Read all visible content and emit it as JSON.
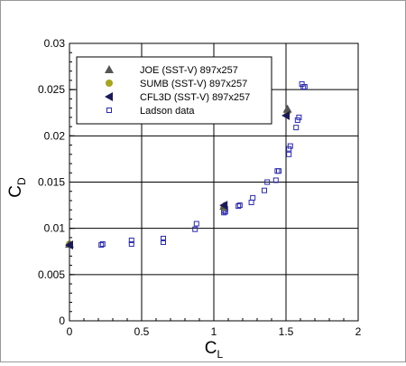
{
  "chart_data": {
    "type": "scatter",
    "xlabel_main": "C",
    "xlabel_sub": "L",
    "ylabel_main": "C",
    "ylabel_sub": "D",
    "xlim": [
      0,
      2
    ],
    "ylim": [
      0,
      0.03
    ],
    "x_ticks": [
      0,
      0.5,
      1,
      1.5,
      2
    ],
    "x_tick_labels": [
      "0",
      "0.5",
      "1",
      "1.5",
      "2"
    ],
    "y_ticks": [
      0,
      0.005,
      0.01,
      0.015,
      0.02,
      0.025,
      0.03
    ],
    "y_tick_labels": [
      "0",
      "0.005",
      "0.01",
      "0.015",
      "0.02",
      "0.025",
      "0.03"
    ],
    "grid": true,
    "legend_position": "top-left",
    "series": [
      {
        "name": "JOE (SST-V) 897x257",
        "marker": "triangle-up",
        "color": "#555555",
        "x": [
          0.0,
          1.07,
          1.51
        ],
        "y": [
          0.0083,
          0.0124,
          0.0229
        ]
      },
      {
        "name": "SUMB (SST-V) 897x257",
        "marker": "circle",
        "color": "#a5a51e",
        "x": [
          0.0,
          1.07,
          1.51
        ],
        "y": [
          0.0083,
          0.0123,
          0.0226
        ]
      },
      {
        "name": "CFL3D (SST-V) 897x257",
        "marker": "triangle-left",
        "color": "#1a1a5a",
        "x": [
          0.0,
          1.07,
          1.5
        ],
        "y": [
          0.0082,
          0.0125,
          0.0222
        ]
      },
      {
        "name": "Ladson data",
        "marker": "square-open",
        "color": "#2a2ab0",
        "x": [
          0.22,
          0.23,
          0.43,
          0.43,
          0.65,
          0.65,
          0.87,
          0.88,
          1.07,
          1.07,
          1.08,
          1.08,
          1.17,
          1.18,
          1.26,
          1.27,
          1.35,
          1.37,
          1.43,
          1.44,
          1.45,
          1.52,
          1.52,
          1.53,
          1.57,
          1.58,
          1.59,
          1.61,
          1.62,
          1.63
        ],
        "y": [
          0.0082,
          0.0083,
          0.0083,
          0.0087,
          0.0085,
          0.0089,
          0.0099,
          0.0105,
          0.0117,
          0.0119,
          0.0118,
          0.0121,
          0.0124,
          0.0125,
          0.0128,
          0.0133,
          0.0141,
          0.015,
          0.0152,
          0.0162,
          0.0162,
          0.018,
          0.0186,
          0.0189,
          0.0209,
          0.0217,
          0.022,
          0.0256,
          0.0253,
          0.0253
        ]
      }
    ]
  }
}
